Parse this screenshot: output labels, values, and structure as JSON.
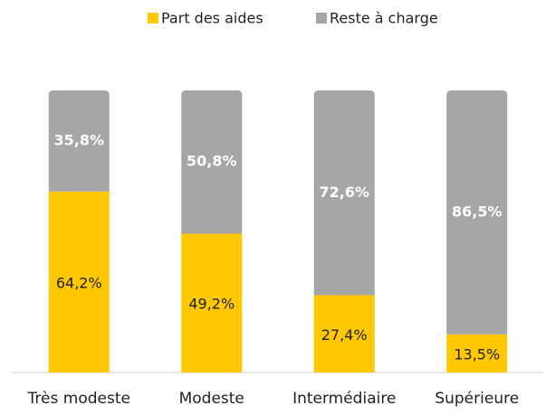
{
  "chart_data": {
    "type": "bar",
    "stacked": true,
    "categories": [
      "Très modeste",
      "Modeste",
      "Intermédiaire",
      "Supérieure"
    ],
    "series": [
      {
        "name": "Part des aides",
        "color": "#FFC800",
        "values": [
          64.2,
          49.2,
          27.4,
          13.5
        ],
        "value_labels": [
          "64,2%",
          "49,2%",
          "27,4%",
          "13,5%"
        ]
      },
      {
        "name": "Reste à charge",
        "color": "#A6A6A6",
        "values": [
          35.8,
          50.8,
          72.6,
          86.5
        ],
        "value_labels": [
          "35,8%",
          "50,8%",
          "72,6%",
          "86,5%"
        ]
      }
    ],
    "ylim": [
      0,
      100
    ]
  }
}
